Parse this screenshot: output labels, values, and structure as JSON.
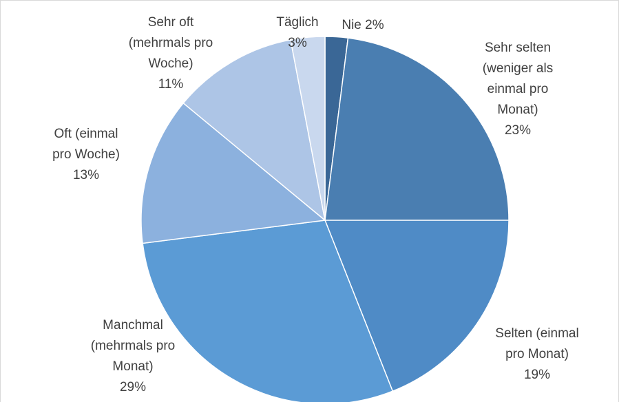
{
  "chart_data": {
    "type": "pie",
    "categories": [
      "Nie",
      "Sehr selten (weniger als einmal pro Monat)",
      "Selten (einmal pro Monat)",
      "Manchmal (mehrmals pro Monat)",
      "Oft (einmal pro Woche)",
      "Sehr oft (mehrmals pro Woche)",
      "Täglich"
    ],
    "values": [
      2,
      23,
      19,
      29,
      13,
      11,
      3
    ],
    "value_labels": [
      "2%",
      "23%",
      "19%",
      "29%",
      "13%",
      "11%",
      "3%"
    ],
    "colors": [
      "#3a6796",
      "#4a7eb1",
      "#4f8bc6",
      "#5b9bd5",
      "#8cb1de",
      "#adc5e6",
      "#c9d8ee"
    ]
  }
}
